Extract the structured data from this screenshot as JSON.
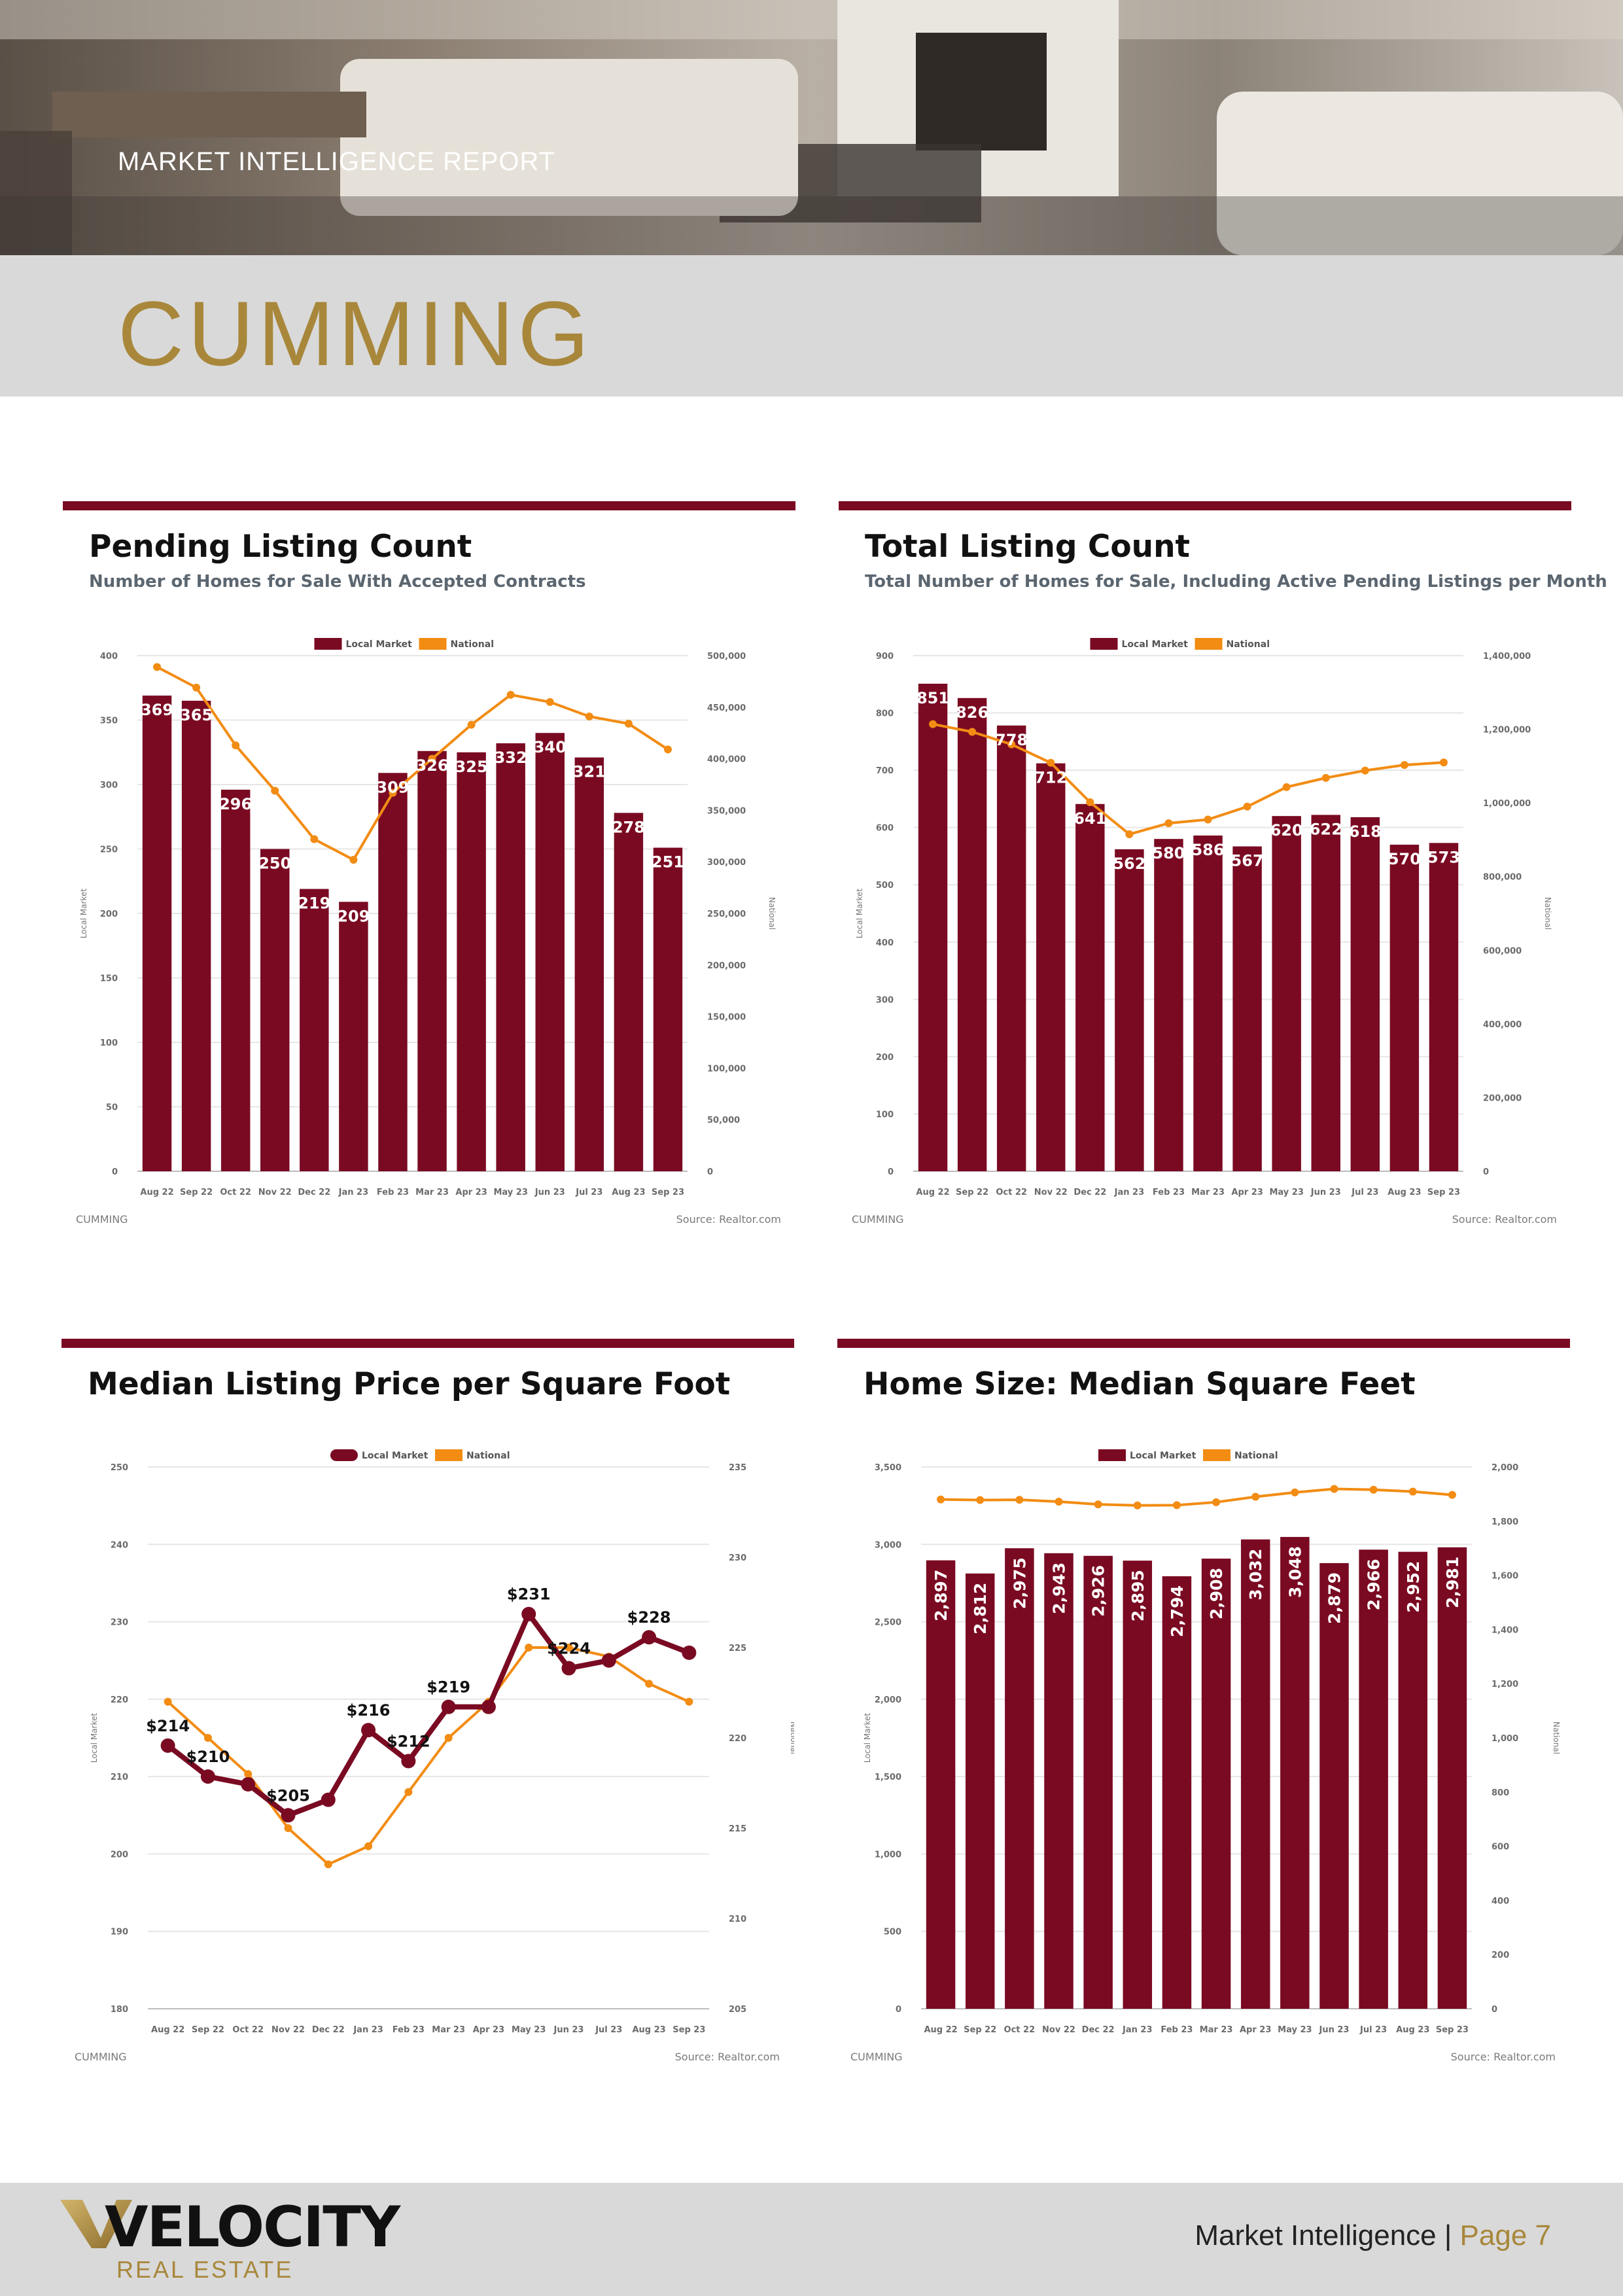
{
  "header": {
    "report_label": "MARKET INTELLIGENCE REPORT",
    "city": "CUMMING"
  },
  "footer": {
    "brand": "VELOCITY",
    "brand_sub": "REAL ESTATE",
    "page_label": "Market Intelligence |",
    "page_number": "Page 7"
  },
  "colors": {
    "local": "#7a0a22",
    "national": "#f28c13",
    "accent": "#a8873b",
    "band": "#d9d9d9"
  },
  "charts": [
    {
      "title": "Pending Listing Count",
      "subtitle": "Number of Homes for Sale With Accepted Contracts",
      "footer_left": "CUMMING",
      "footer_right": "Source: Realtor.com"
    },
    {
      "title": "Total Listing Count",
      "subtitle": "Total Number of Homes for Sale, Including Active Pending Listings per Month",
      "footer_left": "CUMMING",
      "footer_right": "Source: Realtor.com"
    },
    {
      "title": "Median Listing Price per Square Foot",
      "subtitle": "",
      "footer_left": "CUMMING",
      "footer_right": "Source: Realtor.com"
    },
    {
      "title": "Home Size: Median Square Feet",
      "subtitle": "",
      "footer_left": "CUMMING",
      "footer_right": "Source: Realtor.com"
    }
  ],
  "chart_data": [
    {
      "type": "bar",
      "title": "Pending Listing Count",
      "categories": [
        "Aug 22",
        "Sep 22",
        "Oct 22",
        "Nov 22",
        "Dec 22",
        "Jan 23",
        "Feb 23",
        "Mar 23",
        "Apr 23",
        "May 23",
        "Jun 23",
        "Jul 23",
        "Aug 23",
        "Sep 23"
      ],
      "series": [
        {
          "name": "Local Market",
          "kind": "bar",
          "axis": "left",
          "values": [
            369,
            365,
            296,
            250,
            219,
            209,
            309,
            326,
            325,
            332,
            340,
            321,
            278,
            251
          ],
          "labels": [
            "369",
            "365",
            "296",
            "250",
            "219",
            "209",
            "309",
            "326",
            "325",
            "332",
            "340",
            "321",
            "278",
            "251"
          ]
        },
        {
          "name": "National",
          "kind": "line",
          "axis": "right",
          "values": [
            489000,
            469000,
            413000,
            369000,
            322000,
            302000,
            367000,
            400000,
            433000,
            462000,
            455000,
            441000,
            434000,
            409000
          ]
        }
      ],
      "ylabel": "Local Market",
      "y2label": "National",
      "ylim": [
        0,
        400
      ],
      "yticks": [
        0,
        50,
        100,
        150,
        200,
        250,
        300,
        350,
        400
      ],
      "ytick_labels": [
        "0",
        "50",
        "100",
        "150",
        "200",
        "250",
        "300",
        "350",
        "400"
      ],
      "y2lim": [
        0,
        500000
      ],
      "y2ticks": [
        0,
        50000,
        100000,
        150000,
        200000,
        250000,
        300000,
        350000,
        400000,
        450000,
        500000
      ],
      "y2tick_labels": [
        "0",
        "50,000",
        "100,000",
        "150,000",
        "200,000",
        "250,000",
        "300,000",
        "350,000",
        "400,000",
        "450,000",
        "500,000"
      ],
      "legend": [
        "Local Market",
        "National"
      ],
      "legend_position": "top-center",
      "label_style": "inside-top"
    },
    {
      "type": "bar",
      "title": "Total Listing Count",
      "categories": [
        "Aug 22",
        "Sep 22",
        "Oct 22",
        "Nov 22",
        "Dec 22",
        "Jan 23",
        "Feb 23",
        "Mar 23",
        "Apr 23",
        "May 23",
        "Jun 23",
        "Jul 23",
        "Aug 23",
        "Sep 23"
      ],
      "series": [
        {
          "name": "Local Market",
          "kind": "bar",
          "axis": "left",
          "values": [
            851,
            826,
            778,
            712,
            641,
            562,
            580,
            586,
            567,
            620,
            622,
            618,
            570,
            573
          ],
          "labels": [
            "851",
            "826",
            "778",
            "712",
            "641",
            "562",
            "580",
            "586",
            "567",
            "620",
            "622",
            "618",
            "570",
            "573"
          ]
        },
        {
          "name": "National",
          "kind": "line",
          "axis": "right",
          "values": [
            1214000,
            1193000,
            1159000,
            1109000,
            1002000,
            915000,
            945000,
            955000,
            990000,
            1043000,
            1068000,
            1088000,
            1103000,
            1110000
          ]
        }
      ],
      "ylabel": "Local Market",
      "y2label": "National",
      "ylim": [
        0,
        900
      ],
      "yticks": [
        0,
        100,
        200,
        300,
        400,
        500,
        600,
        700,
        800,
        900
      ],
      "ytick_labels": [
        "0",
        "100",
        "200",
        "300",
        "400",
        "500",
        "600",
        "700",
        "800",
        "900"
      ],
      "y2lim": [
        0,
        1400000
      ],
      "y2ticks": [
        0,
        200000,
        400000,
        600000,
        800000,
        1000000,
        1200000,
        1400000
      ],
      "y2tick_labels": [
        "0",
        "200,000",
        "400,000",
        "600,000",
        "800,000",
        "1,000,000",
        "1,200,000",
        "1,400,000"
      ],
      "legend": [
        "Local Market",
        "National"
      ],
      "legend_position": "top-center",
      "label_style": "inside-top"
    },
    {
      "type": "line",
      "title": "Median Listing Price per Square Foot",
      "categories": [
        "Aug 22",
        "Sep 22",
        "Oct 22",
        "Nov 22",
        "Dec 22",
        "Jan 23",
        "Feb 23",
        "Mar 23",
        "Apr 23",
        "May 23",
        "Jun 23",
        "Jul 23",
        "Aug 23",
        "Sep 23"
      ],
      "series": [
        {
          "name": "Local Market",
          "kind": "line-thick",
          "axis": "left",
          "values": [
            214,
            210,
            209,
            205,
            207,
            216,
            212,
            219,
            219,
            231,
            224,
            225,
            228,
            226
          ],
          "labels": [
            "$214",
            "$210",
            "",
            "$205",
            "",
            "$216",
            "$212",
            "$219",
            "",
            "$231",
            "$224",
            "",
            "$228",
            ""
          ]
        },
        {
          "name": "National",
          "kind": "line",
          "axis": "right",
          "values": [
            222,
            220,
            218,
            215,
            213,
            214,
            217,
            220,
            222,
            225,
            225,
            224.5,
            223,
            222
          ]
        }
      ],
      "ylabel": "Local Market",
      "y2label": "National",
      "ylim": [
        180,
        250
      ],
      "yticks": [
        180,
        190,
        200,
        210,
        220,
        230,
        240,
        250
      ],
      "ytick_labels": [
        "180",
        "190",
        "200",
        "210",
        "220",
        "230",
        "240",
        "250"
      ],
      "y2lim": [
        205,
        235
      ],
      "y2ticks": [
        205,
        210,
        215,
        220,
        225,
        230,
        235
      ],
      "y2tick_labels": [
        "205",
        "210",
        "215",
        "220",
        "225",
        "230",
        "235"
      ],
      "legend": [
        "Local Market",
        "National"
      ],
      "legend_position": "top-center",
      "label_style": "above-point"
    },
    {
      "type": "bar",
      "title": "Home Size: Median Square Feet",
      "categories": [
        "Aug 22",
        "Sep 22",
        "Oct 22",
        "Nov 22",
        "Dec 22",
        "Jan 23",
        "Feb 23",
        "Mar 23",
        "Apr 23",
        "May 23",
        "Jun 23",
        "Jul 23",
        "Aug 23",
        "Sep 23"
      ],
      "series": [
        {
          "name": "Local Market",
          "kind": "bar",
          "axis": "left",
          "values": [
            2897,
            2812,
            2975,
            2943,
            2926,
            2895,
            2794,
            2908,
            3032,
            3048,
            2879,
            2966,
            2952,
            2981
          ],
          "labels": [
            "2,897",
            "2,812",
            "2,975",
            "2,943",
            "2,926",
            "2,895",
            "2,794",
            "2,908",
            "3,032",
            "3,048",
            "2,879",
            "2,966",
            "2,952",
            "2,981"
          ]
        },
        {
          "name": "National",
          "kind": "line",
          "axis": "right",
          "values": [
            1880,
            1878,
            1879,
            1872,
            1862,
            1858,
            1859,
            1870,
            1890,
            1906,
            1919,
            1916,
            1909,
            1897
          ]
        }
      ],
      "ylabel": "Local Market",
      "y2label": "National",
      "ylim": [
        0,
        3500
      ],
      "yticks": [
        0,
        500,
        1000,
        1500,
        2000,
        2500,
        3000,
        3500
      ],
      "ytick_labels": [
        "0",
        "500",
        "1,000",
        "1,500",
        "2,000",
        "2,500",
        "3,000",
        "3,500"
      ],
      "y2lim": [
        0,
        2000
      ],
      "y2ticks": [
        0,
        200,
        400,
        600,
        800,
        1000,
        1200,
        1400,
        1600,
        1800,
        2000
      ],
      "y2tick_labels": [
        "0",
        "200",
        "400",
        "600",
        "800",
        "1,000",
        "1,200",
        "1,400",
        "1,600",
        "1,800",
        "2,000"
      ],
      "legend": [
        "Local Market",
        "National"
      ],
      "legend_position": "top-center",
      "label_style": "vertical-inside"
    }
  ]
}
